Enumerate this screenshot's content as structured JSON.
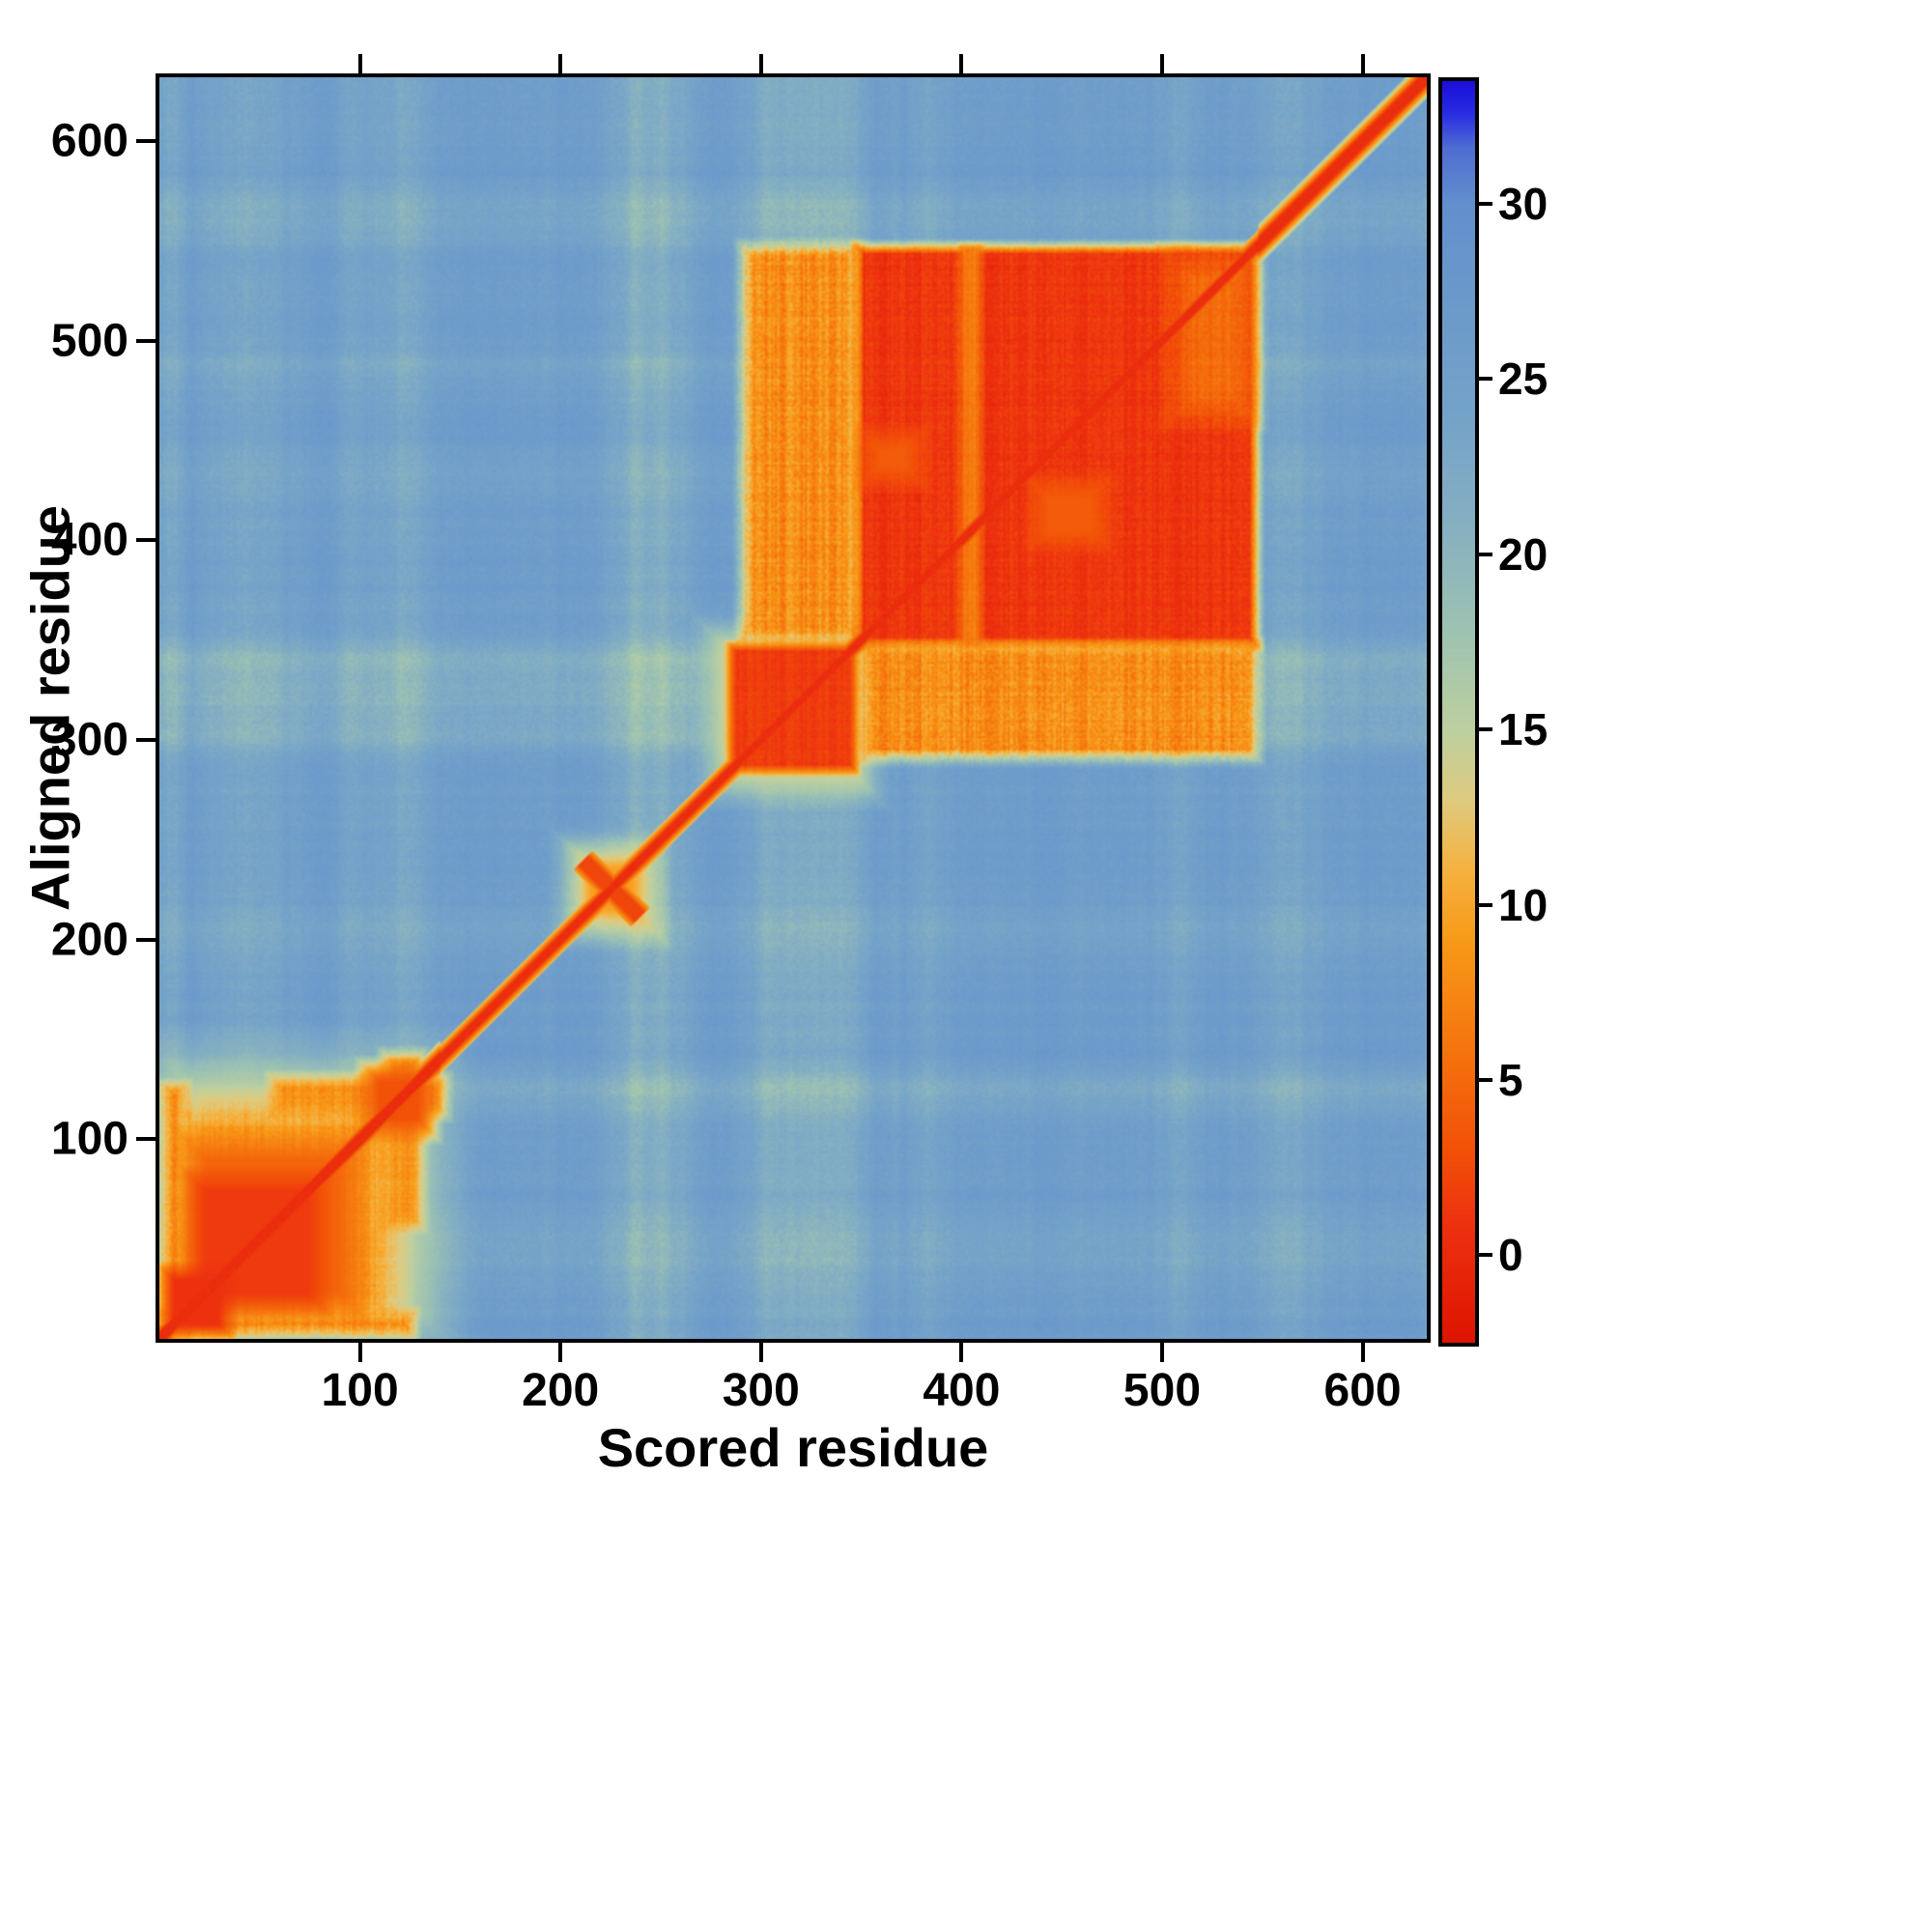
{
  "chart_data": {
    "type": "heatmap",
    "xlabel": "Scored residue",
    "ylabel": "Aligned residue",
    "x_domain": [
      0,
      632
    ],
    "y_domain": [
      0,
      632
    ],
    "x_ticks": [
      100,
      200,
      300,
      400,
      500,
      600
    ],
    "y_ticks": [
      100,
      200,
      300,
      400,
      500,
      600
    ],
    "colorbar": {
      "min": -2.5,
      "max": 33.5,
      "ticks": [
        0,
        5,
        10,
        15,
        20,
        25,
        30
      ]
    },
    "colormap": [
      [
        -2.5,
        "#dd1400"
      ],
      [
        1,
        "#ee3310"
      ],
      [
        3,
        "#f25108"
      ],
      [
        6,
        "#f5760e"
      ],
      [
        9,
        "#f89a19"
      ],
      [
        11,
        "#f5b240"
      ],
      [
        13,
        "#dfcb80"
      ],
      [
        15,
        "#bdd0a0"
      ],
      [
        18,
        "#9cc2b3"
      ],
      [
        21,
        "#85afc2"
      ],
      [
        24,
        "#74a3c9"
      ],
      [
        27,
        "#6c9aca"
      ],
      [
        30,
        "#6390cd"
      ],
      [
        31.6,
        "#4e6ed3"
      ],
      [
        32.6,
        "#2a2ce2"
      ],
      [
        33.5,
        "#1b10da"
      ]
    ],
    "render": {
      "grid": 632,
      "seed": 20240613,
      "base": 26,
      "colNoise": 1.4,
      "rowNoise": 1.3,
      "pixNoise": 0.9,
      "tints": [
        {
          "axis": "x",
          "from": 225,
          "to": 262,
          "dv": -4.5,
          "f": 10
        },
        {
          "axis": "x",
          "from": 294,
          "to": 350,
          "dv": -4.0,
          "f": 8
        },
        {
          "axis": "y",
          "from": 294,
          "to": 350,
          "dv": -3.5,
          "f": 8
        },
        {
          "axis": "x",
          "from": 112,
          "to": 134,
          "dv": -3.0,
          "f": 6
        },
        {
          "axis": "y",
          "from": 112,
          "to": 134,
          "dv": -3.0,
          "f": 6
        },
        {
          "axis": "x",
          "from": 28,
          "to": 64,
          "dv": -2.5,
          "f": 10
        },
        {
          "axis": "y",
          "from": 28,
          "to": 64,
          "dv": -2.0,
          "f": 10
        },
        {
          "axis": "x",
          "from": 552,
          "to": 574,
          "dv": -3.0,
          "f": 8
        },
        {
          "axis": "y",
          "from": 550,
          "to": 575,
          "dv": -2.5,
          "f": 8
        },
        {
          "axis": "x",
          "from": 90,
          "to": 106,
          "dv": -2.0,
          "f": 6
        },
        {
          "axis": "y",
          "from": 196,
          "to": 216,
          "dv": -2.0,
          "f": 6
        },
        {
          "axis": "x",
          "from": 376,
          "to": 392,
          "dv": -1.5,
          "f": 6
        },
        {
          "axis": "y",
          "from": 420,
          "to": 440,
          "dv": -1.5,
          "f": 6
        },
        {
          "axis": "x",
          "from": 500,
          "to": 516,
          "dv": -2.0,
          "f": 6
        },
        {
          "axis": "y",
          "from": 480,
          "to": 496,
          "dv": -1.5,
          "f": 6
        },
        {
          "axis": "x",
          "from": 0,
          "to": 12,
          "dv": -3.0,
          "f": 4
        }
      ],
      "regions": [
        {
          "x1": 2,
          "x2": 140,
          "y1": 2,
          "y2": 140,
          "v": 15,
          "f": 20
        },
        {
          "x1": 2,
          "x2": 126,
          "y1": 2,
          "y2": 12,
          "v": 7,
          "f": 5,
          "stripe": 2
        },
        {
          "x1": 2,
          "x2": 12,
          "y1": 2,
          "y2": 126,
          "v": 7,
          "f": 5,
          "stripe": 2
        },
        {
          "x1": 8,
          "x2": 116,
          "y1": 8,
          "y2": 116,
          "v": 9.5,
          "f": 12,
          "stripe": 1.6
        },
        {
          "x1": 14,
          "x2": 98,
          "y1": 14,
          "y2": 98,
          "v": 4.5,
          "f": 10
        },
        {
          "x1": 16,
          "x2": 80,
          "y1": 16,
          "y2": 80,
          "v": 1.4,
          "f": 7
        },
        {
          "x1": 2,
          "x2": 34,
          "y1": 2,
          "y2": 34,
          "v": 0.8,
          "f": 5
        },
        {
          "x1": 112,
          "x2": 130,
          "y1": 56,
          "y2": 142,
          "v": 8.5,
          "f": 5,
          "stripe": 1.4
        },
        {
          "x1": 56,
          "x2": 142,
          "y1": 112,
          "y2": 130,
          "v": 8.5,
          "f": 5,
          "stripe": 1.4
        },
        {
          "x1": 103,
          "x2": 135,
          "y1": 103,
          "y2": 135,
          "v": 3,
          "f": 7
        },
        {
          "x1": 204,
          "x2": 246,
          "y1": 204,
          "y2": 246,
          "v": 9.5,
          "f": 11
        },
        {
          "x1": 274,
          "x2": 354,
          "y1": 274,
          "y2": 354,
          "v": 12.5,
          "f": 11
        },
        {
          "x1": 284,
          "x2": 347,
          "y1": 284,
          "y2": 347,
          "v": 1.6,
          "f": 3,
          "stripe": 0.8
        },
        {
          "x1": 350,
          "x2": 547,
          "y1": 290,
          "y2": 347,
          "v": 8,
          "f": 5,
          "stripe": 2.4
        },
        {
          "x1": 290,
          "x2": 347,
          "y1": 350,
          "y2": 547,
          "v": 8,
          "f": 5,
          "stripe": 2.4
        },
        {
          "x1": 347,
          "x2": 547,
          "y1": 347,
          "y2": 547,
          "v": 1.1,
          "f": 4,
          "stripe": 1.2
        },
        {
          "x1": 399,
          "x2": 409,
          "y1": 347,
          "y2": 547,
          "v": 6.5,
          "f": 3,
          "mode": "set",
          "stripe": 1
        },
        {
          "x1": 505,
          "x2": 544,
          "y1": 462,
          "y2": 540,
          "v": 5,
          "f": 10,
          "mode": "set",
          "stripe": 1.2
        },
        {
          "x1": 436,
          "x2": 470,
          "y1": 398,
          "y2": 428,
          "v": 4,
          "f": 8,
          "mode": "set"
        },
        {
          "x1": 352,
          "x2": 378,
          "y1": 430,
          "y2": 452,
          "v": 4,
          "f": 8,
          "mode": "set"
        }
      ],
      "diagonal": {
        "core": 0.4,
        "fade": 2.4,
        "segments": [
          {
            "from": 0,
            "to": 140,
            "w": 3.0
          },
          {
            "from": 140,
            "to": 290,
            "w": 2.3
          },
          {
            "from": 290,
            "to": 548,
            "w": 2.3
          },
          {
            "from": 548,
            "to": 632,
            "w": 3.4
          }
        ]
      },
      "cross": {
        "cx": 225,
        "cy": 225,
        "arm": 20,
        "w": 3.2,
        "w2": 6.5,
        "v": 2.2,
        "fade": 2.2
      }
    }
  }
}
